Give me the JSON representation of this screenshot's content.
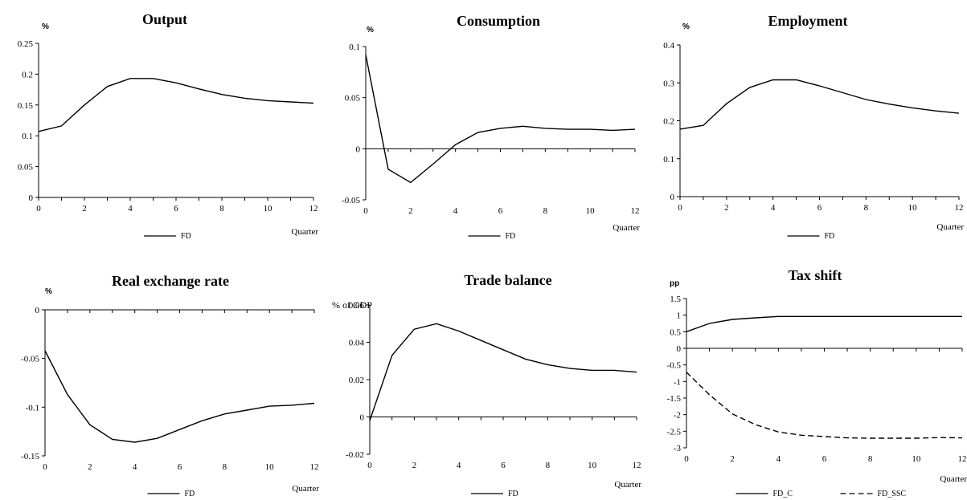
{
  "chart_data": [
    {
      "type": "line",
      "title": "Output",
      "unit_label": "%",
      "xlabel": "Quarter",
      "x": [
        0,
        1,
        2,
        3,
        4,
        5,
        6,
        7,
        8,
        9,
        10,
        11,
        12
      ],
      "xticks": [
        "0",
        "2",
        "4",
        "6",
        "8",
        "10",
        "12"
      ],
      "ylim": [
        0,
        0.25
      ],
      "yticks": [
        "0",
        "0.05",
        "0.1",
        "0.15",
        "0.2",
        "0.25"
      ],
      "zero_line": false,
      "series": [
        {
          "name": "FD",
          "dash": "solid",
          "values": [
            0.107,
            0.116,
            0.15,
            0.18,
            0.193,
            0.193,
            0.186,
            0.176,
            0.167,
            0.161,
            0.157,
            0.155,
            0.153
          ]
        }
      ]
    },
    {
      "type": "line",
      "title": "Consumption",
      "unit_label": "%",
      "xlabel": "Quarter",
      "x": [
        0,
        1,
        2,
        3,
        4,
        5,
        6,
        7,
        8,
        9,
        10,
        11,
        12
      ],
      "xticks": [
        "0",
        "2",
        "4",
        "6",
        "8",
        "10",
        "12"
      ],
      "ylim": [
        -0.05,
        0.1
      ],
      "yticks": [
        "-0.05",
        "0",
        "0.05",
        "0.1"
      ],
      "zero_line": true,
      "series": [
        {
          "name": "FD",
          "dash": "solid",
          "values": [
            0.092,
            -0.02,
            -0.033,
            -0.015,
            0.004,
            0.016,
            0.02,
            0.022,
            0.02,
            0.019,
            0.019,
            0.018,
            0.019
          ]
        }
      ]
    },
    {
      "type": "line",
      "title": "Employment",
      "unit_label": "%",
      "xlabel": "Quarter",
      "x": [
        0,
        1,
        2,
        3,
        4,
        5,
        6,
        7,
        8,
        9,
        10,
        11,
        12
      ],
      "xticks": [
        "0",
        "2",
        "4",
        "6",
        "8",
        "10",
        "12"
      ],
      "ylim": [
        0,
        0.4
      ],
      "yticks": [
        "0",
        "0.1",
        "0.2",
        "0.3",
        "0.4"
      ],
      "zero_line": false,
      "series": [
        {
          "name": "FD",
          "dash": "solid",
          "values": [
            0.178,
            0.188,
            0.245,
            0.288,
            0.308,
            0.308,
            0.292,
            0.274,
            0.256,
            0.244,
            0.234,
            0.226,
            0.22
          ]
        }
      ]
    },
    {
      "type": "line",
      "title": "Real exchange rate",
      "unit_label": "%",
      "xlabel": "Quarter",
      "x": [
        0,
        1,
        2,
        3,
        4,
        5,
        6,
        7,
        8,
        9,
        10,
        11,
        12
      ],
      "xticks": [
        "0",
        "2",
        "4",
        "6",
        "8",
        "10",
        "12"
      ],
      "ylim": [
        -0.15,
        0
      ],
      "yticks": [
        "-0.15",
        "-0.1",
        "-0.05",
        "0"
      ],
      "zero_line": false,
      "series": [
        {
          "name": "FD",
          "dash": "solid",
          "values": [
            -0.042,
            -0.087,
            -0.118,
            -0.133,
            -0.136,
            -0.132,
            -0.123,
            -0.114,
            -0.107,
            -0.103,
            -0.099,
            -0.098,
            -0.096
          ]
        }
      ]
    },
    {
      "type": "line",
      "title": "Trade balance",
      "unit_label": "% of GDP",
      "xlabel": "Quarter",
      "x": [
        0,
        1,
        2,
        3,
        4,
        5,
        6,
        7,
        8,
        9,
        10,
        11,
        12
      ],
      "xticks": [
        "0",
        "2",
        "4",
        "6",
        "8",
        "10",
        "12"
      ],
      "ylim": [
        -0.02,
        0.06
      ],
      "yticks": [
        "-0.02",
        "0",
        "0.02",
        "0.04",
        "0.06"
      ],
      "zero_line": true,
      "series": [
        {
          "name": "FD",
          "dash": "solid",
          "values": [
            -0.002,
            0.033,
            0.047,
            0.05,
            0.046,
            0.041,
            0.036,
            0.031,
            0.028,
            0.026,
            0.025,
            0.025,
            0.024
          ]
        }
      ]
    },
    {
      "type": "line",
      "title": "Tax shift",
      "unit_label": "pp",
      "xlabel": "Quarter",
      "x": [
        0,
        1,
        2,
        3,
        4,
        5,
        6,
        7,
        8,
        9,
        10,
        11,
        12
      ],
      "xticks": [
        "0",
        "2",
        "4",
        "6",
        "8",
        "10",
        "12"
      ],
      "ylim": [
        -3,
        1.5
      ],
      "yticks": [
        "-3",
        "-2.5",
        "-2",
        "-1.5",
        "-1",
        "-0.5",
        "0",
        "0.5",
        "1",
        "1.5"
      ],
      "zero_line": true,
      "series": [
        {
          "name": "FD_C",
          "dash": "solid",
          "values": [
            0.5,
            0.75,
            0.87,
            0.92,
            0.96,
            0.96,
            0.96,
            0.96,
            0.96,
            0.96,
            0.96,
            0.96,
            0.96
          ]
        },
        {
          "name": "FD_SSC",
          "dash": "dashed",
          "values": [
            -0.72,
            -1.4,
            -1.98,
            -2.3,
            -2.52,
            -2.62,
            -2.66,
            -2.7,
            -2.71,
            -2.71,
            -2.71,
            -2.69,
            -2.7
          ]
        }
      ]
    }
  ]
}
